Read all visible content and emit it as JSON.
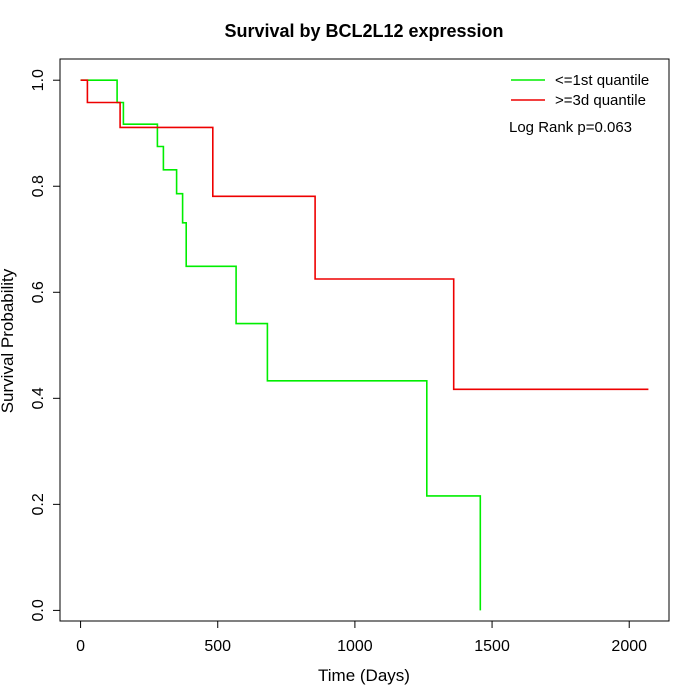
{
  "chart_data": {
    "type": "line",
    "subtype": "kaplan-meier step",
    "title": "Survival by BCL2L12 expression",
    "xlabel": "Time (Days)",
    "ylabel": "Survival Probability",
    "xlim": [
      -75,
      2145
    ],
    "ylim": [
      -0.02,
      1.04
    ],
    "x_ticks": [
      0,
      500,
      1000,
      1500,
      2000
    ],
    "y_ticks": [
      0.0,
      0.2,
      0.4,
      0.6,
      0.8,
      1.0
    ],
    "x_tick_labels": [
      "0",
      "500",
      "1000",
      "1500",
      "2000"
    ],
    "y_tick_labels": [
      "0.0",
      "0.2",
      "0.4",
      "0.6",
      "0.8",
      "1.0"
    ],
    "grid": false,
    "legend_position": "top-right",
    "annotation": "Log Rank p=0.063",
    "series": [
      {
        "name": "<=1st quantile",
        "color": "#00ee00",
        "points": [
          [
            0,
            1.0
          ],
          [
            133,
            1.0
          ],
          [
            133,
            0.958
          ],
          [
            156,
            0.958
          ],
          [
            156,
            0.917
          ],
          [
            280,
            0.917
          ],
          [
            280,
            0.875
          ],
          [
            302,
            0.875
          ],
          [
            302,
            0.831
          ],
          [
            350,
            0.831
          ],
          [
            350,
            0.786
          ],
          [
            372,
            0.786
          ],
          [
            372,
            0.731
          ],
          [
            385,
            0.731
          ],
          [
            385,
            0.649
          ],
          [
            567,
            0.649
          ],
          [
            567,
            0.541
          ],
          [
            681,
            0.541
          ],
          [
            681,
            0.433
          ],
          [
            1262,
            0.433
          ],
          [
            1262,
            0.216
          ],
          [
            1457,
            0.216
          ],
          [
            1457,
            0.0
          ]
        ]
      },
      {
        "name": ">=3d quantile",
        "color": "#ee0000",
        "points": [
          [
            0,
            1.0
          ],
          [
            25,
            1.0
          ],
          [
            25,
            0.958
          ],
          [
            144,
            0.958
          ],
          [
            144,
            0.911
          ],
          [
            482,
            0.911
          ],
          [
            482,
            0.781
          ],
          [
            855,
            0.781
          ],
          [
            855,
            0.625
          ],
          [
            1360,
            0.625
          ],
          [
            1360,
            0.417
          ],
          [
            2070,
            0.417
          ]
        ]
      }
    ]
  }
}
